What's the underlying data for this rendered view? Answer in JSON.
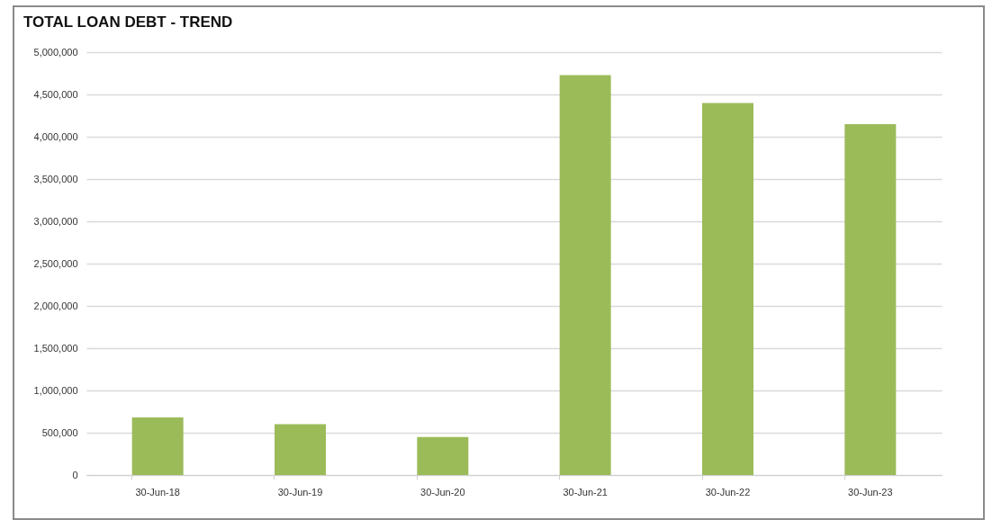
{
  "chart_data": {
    "type": "bar",
    "title": "TOTAL LOAN DEBT - TREND",
    "categories": [
      "30-Jun-18",
      "30-Jun-19",
      "30-Jun-20",
      "30-Jun-21",
      "30-Jun-22",
      "30-Jun-23"
    ],
    "values": [
      680000,
      600000,
      450000,
      4730000,
      4400000,
      4150000
    ],
    "color": "#9bbb59",
    "ylim": [
      0,
      5000000
    ],
    "yticks": [
      0,
      {
        "value": 500000,
        "label": "500,000"
      },
      {
        "value": 1000000,
        "label": "1,000,000"
      },
      {
        "value": 1500000,
        "label": "1,500,000"
      },
      {
        "value": 2000000,
        "label": "2,000,000"
      },
      {
        "value": 2500000,
        "label": "2,500,000"
      },
      {
        "value": 3000000,
        "label": "3,000,000"
      },
      {
        "value": 3500000,
        "label": "3,500,000"
      },
      {
        "value": 4000000,
        "label": "4,000,000"
      },
      {
        "value": 4500000,
        "label": "4,500,000"
      },
      {
        "value": 5000000,
        "label": "5,000,000"
      }
    ],
    "grid": "y"
  }
}
